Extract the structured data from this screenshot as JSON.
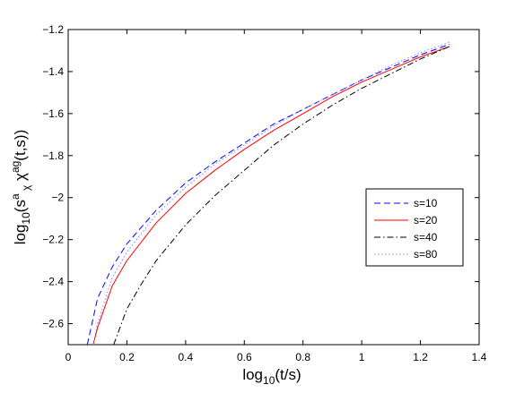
{
  "chart_data": {
    "type": "line",
    "title": "",
    "xlabel": "log₁₀(t/s)",
    "ylabel": "log₁₀(sᵃ_χ χᵃᵍ(t,s))",
    "xlim": [
      0,
      1.4
    ],
    "ylim": [
      -2.7,
      -1.2
    ],
    "xticks": [
      0,
      0.2,
      0.4,
      0.6,
      0.8,
      1,
      1.2,
      1.4
    ],
    "xtick_labels": [
      "0",
      "0.2",
      "0.4",
      "0.6",
      "0.8",
      "1",
      "1.2",
      "1.4"
    ],
    "yticks": [
      -2.6,
      -2.4,
      -2.2,
      -2,
      -1.8,
      -1.6,
      -1.4,
      -1.2
    ],
    "ytick_labels": [
      "−2.6",
      "−2.4",
      "−2.2",
      "−2",
      "−1.8",
      "−1.6",
      "−1.4",
      "−1.2"
    ],
    "grid": false,
    "legend": "center-right",
    "series": [
      {
        "name": "s=10",
        "color": "#0000ff",
        "dash": "dashed",
        "x": [
          0.065,
          0.1,
          0.15,
          0.2,
          0.3,
          0.4,
          0.5,
          0.6,
          0.7,
          0.8,
          0.9,
          1.0,
          1.1,
          1.2,
          1.3
        ],
        "y": [
          -2.7,
          -2.48,
          -2.33,
          -2.22,
          -2.06,
          -1.93,
          -1.83,
          -1.74,
          -1.65,
          -1.58,
          -1.51,
          -1.44,
          -1.38,
          -1.32,
          -1.27
        ]
      },
      {
        "name": "s=20",
        "color": "#ff0000",
        "dash": "solid",
        "x": [
          0.085,
          0.1,
          0.15,
          0.2,
          0.3,
          0.4,
          0.5,
          0.6,
          0.7,
          0.8,
          0.9,
          1.0,
          1.1,
          1.2,
          1.3
        ],
        "y": [
          -2.7,
          -2.62,
          -2.42,
          -2.3,
          -2.12,
          -1.98,
          -1.87,
          -1.77,
          -1.68,
          -1.6,
          -1.52,
          -1.45,
          -1.39,
          -1.33,
          -1.28
        ]
      },
      {
        "name": "s=40",
        "color": "#000000",
        "dash": "dashdot",
        "x": [
          0.155,
          0.2,
          0.25,
          0.3,
          0.4,
          0.5,
          0.6,
          0.7,
          0.8,
          0.9,
          1.0,
          1.1,
          1.2,
          1.3
        ],
        "y": [
          -2.7,
          -2.53,
          -2.41,
          -2.3,
          -2.13,
          -1.99,
          -1.87,
          -1.75,
          -1.65,
          -1.56,
          -1.48,
          -1.41,
          -1.34,
          -1.28
        ]
      },
      {
        "name": "s=80",
        "color": "#8080ff",
        "dash": "dotted",
        "x": [
          0.085,
          0.1,
          0.15,
          0.2,
          0.3,
          0.4,
          0.5,
          0.6,
          0.7,
          0.8,
          0.9,
          1.0,
          1.1,
          1.2,
          1.3
        ],
        "y": [
          -2.7,
          -2.6,
          -2.38,
          -2.26,
          -2.08,
          -1.95,
          -1.84,
          -1.75,
          -1.66,
          -1.58,
          -1.51,
          -1.44,
          -1.37,
          -1.31,
          -1.26
        ]
      }
    ]
  }
}
